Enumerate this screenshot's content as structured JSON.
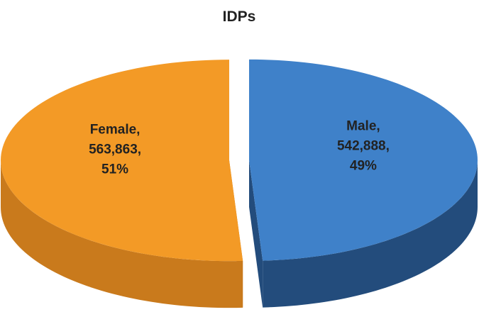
{
  "chart_data": {
    "type": "pie3d",
    "title": "IDPs",
    "categories": [
      "Male",
      "Female"
    ],
    "values": [
      542888,
      563863
    ],
    "value_labels": [
      "542,888",
      "563,863"
    ],
    "percentages": [
      49,
      51
    ],
    "percentage_labels": [
      "49%",
      "51%"
    ],
    "label_separator": ",",
    "colors": [
      "#3f81c9",
      "#f39a26"
    ],
    "side_colors": [
      "#234c7c",
      "#c97a1c"
    ]
  }
}
